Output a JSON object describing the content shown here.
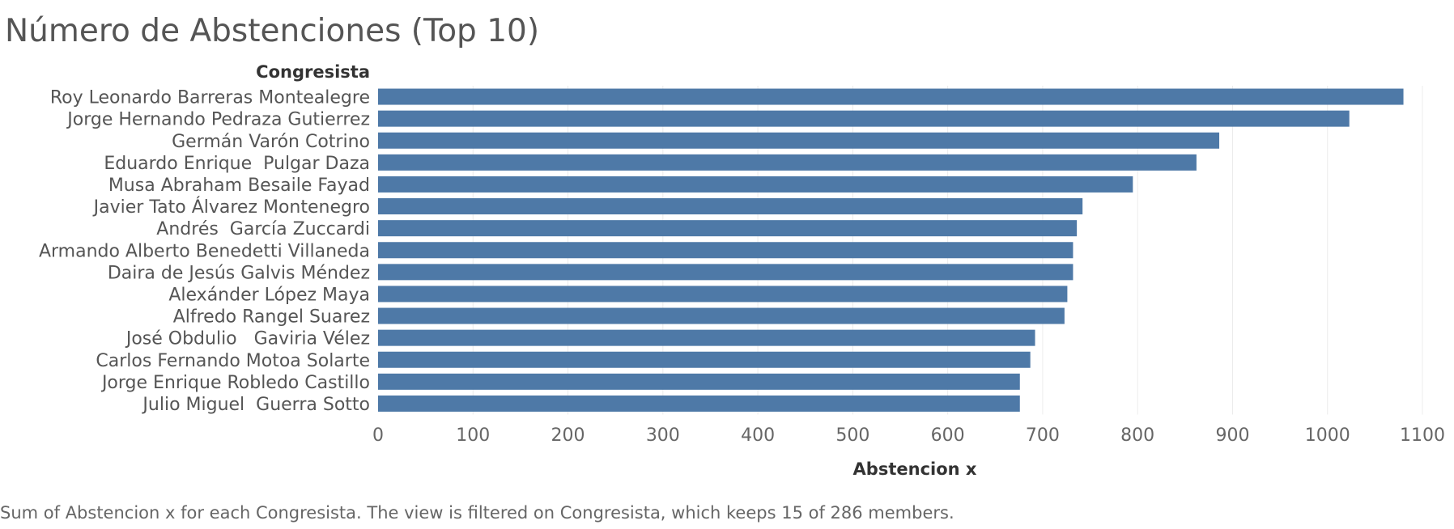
{
  "title": "Número de Abstenciones (Top 10)",
  "caption": "Sum of Abstencion x for each Congresista. The view is filtered on Congresista, which keeps 15 of 286 members.",
  "colors": {
    "bar": "#4e79a7",
    "text": "#555555",
    "grid": "#ececec"
  },
  "chart_data": {
    "type": "bar",
    "orientation": "horizontal",
    "title": "Número de Abstenciones (Top 10)",
    "dimension_header": "Congresista",
    "xlabel": "Abstencion x",
    "ylabel": "Congresista",
    "xlim": [
      0,
      1100
    ],
    "xticks": [
      0,
      100,
      200,
      300,
      400,
      500,
      600,
      700,
      800,
      900,
      1000,
      1100
    ],
    "grid": true,
    "categories": [
      "Roy Leonardo Barreras Montealegre",
      "Jorge Hernando Pedraza Gutierrez",
      "Germán Varón Cotrino",
      "Eduardo Enrique  Pulgar Daza",
      "Musa Abraham Besaile Fayad",
      "Javier Tato Álvarez Montenegro",
      "Andrés  García Zuccardi",
      "Armando Alberto Benedetti Villaneda",
      "Daira de Jesús Galvis Méndez",
      "Alexánder López Maya",
      "Alfredo Rangel Suarez",
      "José Obdulio   Gaviria Vélez",
      "Carlos Fernando Motoa Solarte",
      "Jorge Enrique Robledo Castillo",
      "Julio Miguel  Guerra Sotto"
    ],
    "values": [
      1080,
      1023,
      886,
      862,
      795,
      742,
      736,
      732,
      732,
      726,
      723,
      692,
      687,
      676,
      676
    ]
  }
}
